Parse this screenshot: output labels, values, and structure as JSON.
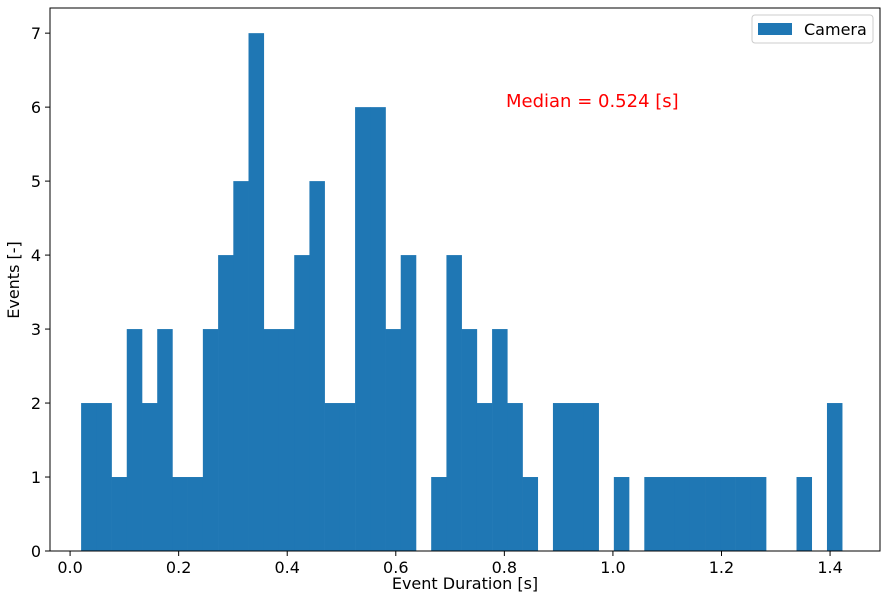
{
  "chart_data": {
    "type": "histogram",
    "xlabel": "Event Duration [s]",
    "ylabel": "Events [-]",
    "annotation": "Median = 0.524 [s]",
    "annotation_color": "#ff0000",
    "legend": "upper right",
    "series": [
      {
        "name": "Camera",
        "color": "#1f77b4",
        "values": [
          2,
          2,
          1,
          3,
          2,
          3,
          1,
          1,
          3,
          4,
          5,
          7,
          3,
          3,
          4,
          5,
          2,
          2,
          6,
          6,
          3,
          4,
          0,
          1,
          4,
          3,
          2,
          3,
          2,
          1,
          0,
          2,
          2,
          2,
          0,
          1,
          0,
          1,
          1,
          1,
          1,
          1,
          1,
          1,
          1,
          0,
          0,
          1,
          0,
          2
        ]
      }
    ],
    "bins": [
      0.0203,
      0.0483,
      0.0764,
      0.1044,
      0.1325,
      0.1605,
      0.1885,
      0.2166,
      0.2446,
      0.2727,
      0.3007,
      0.3287,
      0.3568,
      0.3848,
      0.4129,
      0.4409,
      0.4689,
      0.497,
      0.525,
      0.5531,
      0.5811,
      0.6091,
      0.6372,
      0.6652,
      0.6933,
      0.7213,
      0.7493,
      0.7774,
      0.8054,
      0.8335,
      0.8615,
      0.8895,
      0.9176,
      0.9456,
      0.9737,
      1.0017,
      1.0297,
      1.0578,
      1.0858,
      1.1139,
      1.1419,
      1.1699,
      1.198,
      1.226,
      1.2541,
      1.2821,
      1.3101,
      1.3382,
      1.3662,
      1.3943,
      1.4223
    ],
    "xlim": [
      -0.037,
      1.492
    ],
    "ylim": [
      0,
      7.34
    ],
    "xticks": [
      {
        "value": 0,
        "label": "0.0"
      },
      0.2,
      0.4,
      0.6,
      0.8,
      {
        "value": 1,
        "label": "1.0"
      },
      1.2,
      1.4
    ],
    "yticks": [
      0,
      1,
      2,
      3,
      4,
      5,
      6,
      7
    ]
  }
}
